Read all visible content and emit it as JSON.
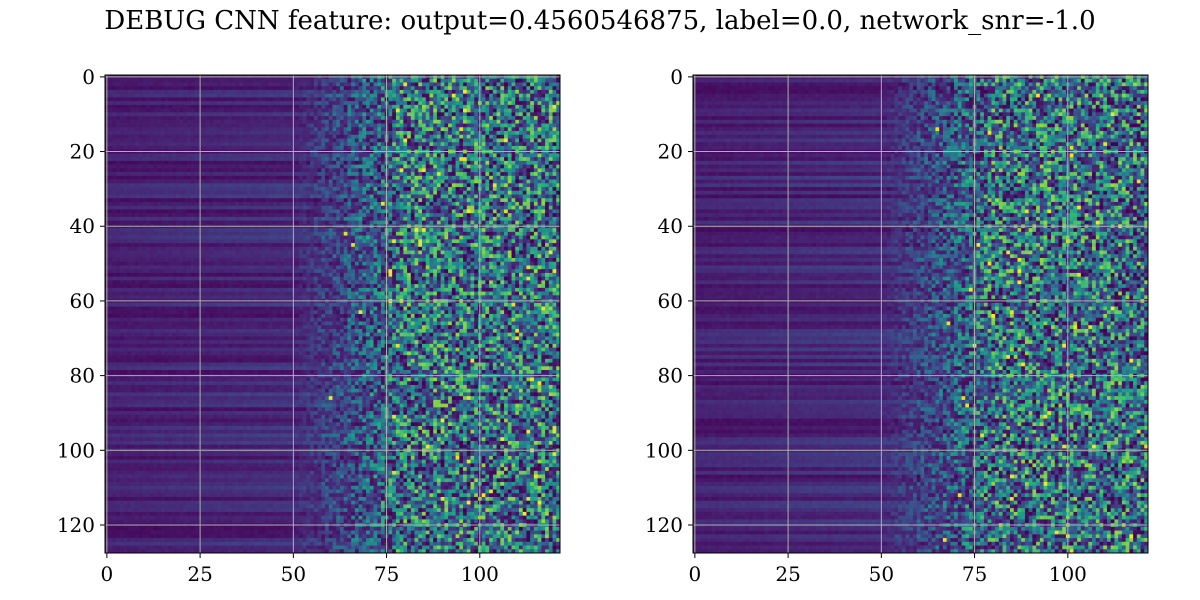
{
  "title": "DEBUG CNN feature: output=0.4560546875, label=0.0, network_snr=-1.0",
  "chart_data": [
    {
      "type": "heatmap",
      "colormap": "viridis",
      "grid": true,
      "x_range": [
        0,
        121
      ],
      "y_range": [
        127,
        0
      ],
      "x_ticks": [
        0,
        25,
        50,
        75,
        100
      ],
      "y_ticks": [
        0,
        20,
        40,
        60,
        80,
        100,
        120
      ],
      "xlabel": "",
      "ylabel": "",
      "seed": 11,
      "description_levels": "dark purple (low) on columns 0-50 with horizontal banding; noisy teal/green/yellow speckle on columns 75-121"
    },
    {
      "type": "heatmap",
      "colormap": "viridis",
      "grid": true,
      "x_range": [
        0,
        121
      ],
      "y_range": [
        127,
        0
      ],
      "x_ticks": [
        0,
        25,
        50,
        75,
        100
      ],
      "y_ticks": [
        0,
        20,
        40,
        60,
        80,
        100,
        120
      ],
      "xlabel": "",
      "ylabel": "",
      "seed": 37,
      "description_levels": "dark purple (low) on columns 0-50 with horizontal banding; noisy teal/green/yellow speckle on columns 75-121"
    }
  ]
}
